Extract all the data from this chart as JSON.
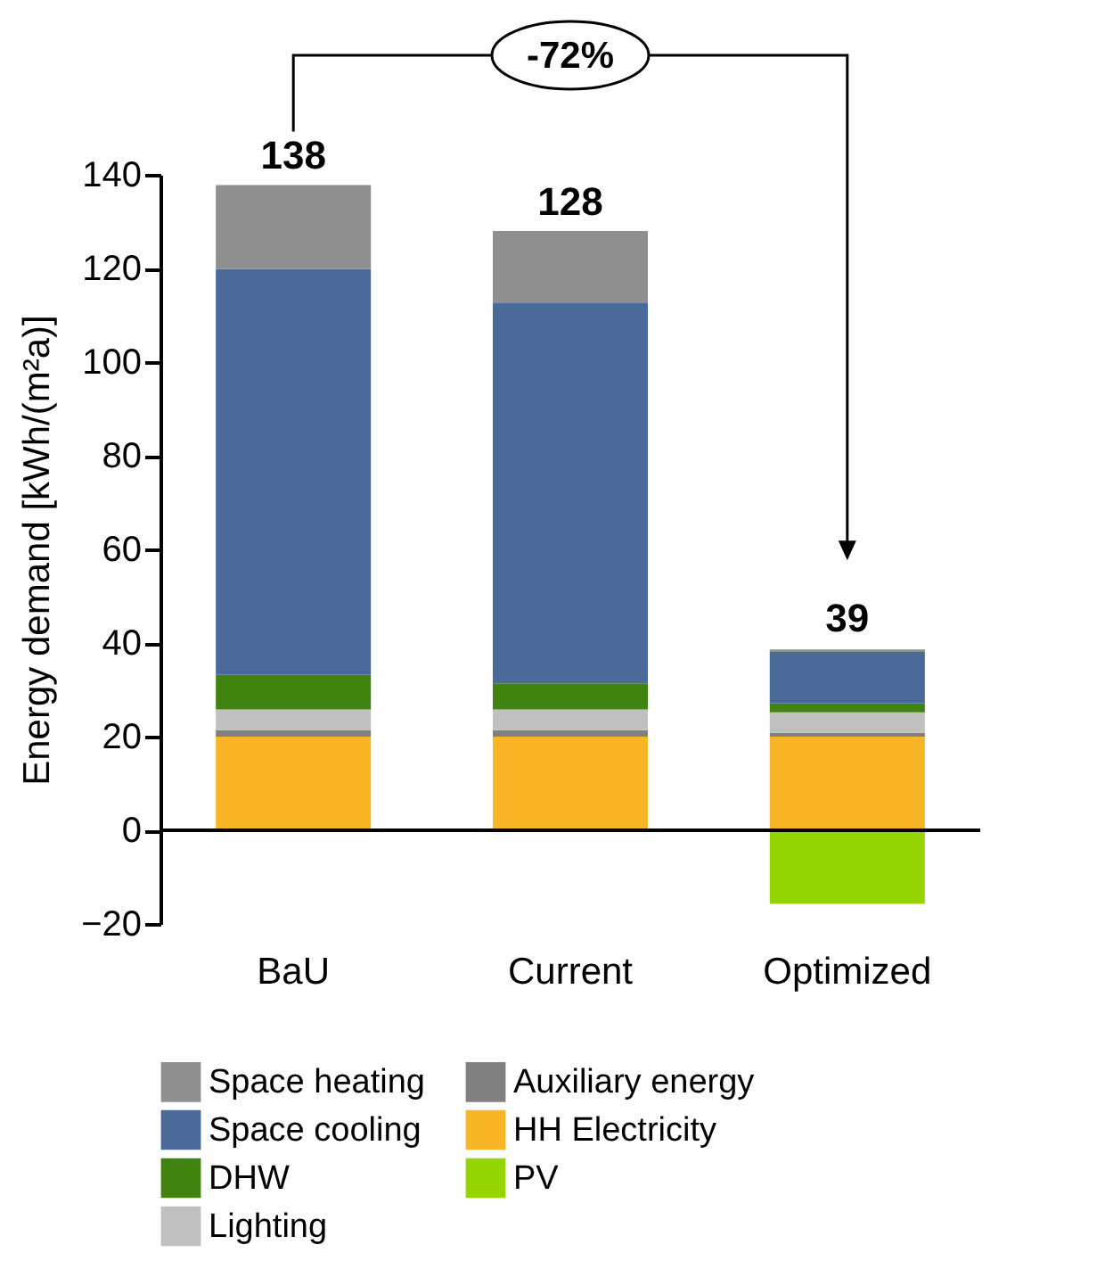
{
  "chart_data": {
    "type": "bar",
    "stacked": true,
    "ylabel": "Energy demand [kWh/(m²a)]",
    "categories": [
      "BaU",
      "Current",
      "Optimized"
    ],
    "series": [
      {
        "name": "HH Electricity",
        "color": "#f8b626",
        "values": [
          20,
          20,
          20
        ]
      },
      {
        "name": "Auxiliary energy",
        "color": "#808080",
        "values": [
          1.4,
          1.4,
          0.8
        ]
      },
      {
        "name": "Lighting",
        "color": "#c0c0c0",
        "values": [
          4.4,
          4.4,
          4.4
        ]
      },
      {
        "name": "DHW",
        "color": "#41830f",
        "values": [
          7.4,
          5.6,
          1.9
        ]
      },
      {
        "name": "Space cooling",
        "color": "#4a6b9a",
        "values": [
          86.7,
          81.3,
          11.0
        ]
      },
      {
        "name": "Space heating",
        "color": "#8f8f8f",
        "values": [
          17.9,
          15.3,
          0.5
        ]
      },
      {
        "name": "PV",
        "color": "#94d500",
        "values": [
          null,
          null,
          -15.7
        ]
      }
    ],
    "ylim": [
      -20,
      140
    ],
    "yticks": [
      -20,
      0,
      20,
      40,
      60,
      80,
      100,
      120,
      140
    ],
    "ref_lines": [
      {
        "axis": "y",
        "value": 0,
        "color": "#000000"
      }
    ],
    "annotations": [
      "-72%",
      {
        "text": "138",
        "x": "BaU",
        "y": 138
      },
      {
        "text": "128",
        "x": "Current",
        "y": 128
      },
      {
        "text": "39",
        "x": "Optimized",
        "y": 39
      }
    ],
    "legend": "bottom",
    "grid": false
  }
}
